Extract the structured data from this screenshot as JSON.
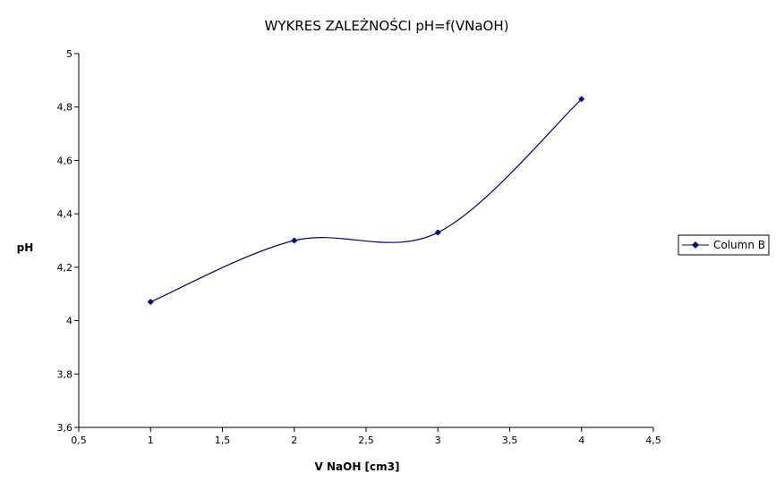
{
  "chart_data": {
    "type": "line",
    "title": "WYKRES ZALEŻNOŚCI pH=f(VNaOH)",
    "xlabel": "V NaOH [cm3]",
    "ylabel": "pH",
    "xlim": [
      0.5,
      4.5
    ],
    "ylim": [
      3.6,
      5.0
    ],
    "x_ticks": [
      "0,5",
      "1",
      "1,5",
      "2",
      "2,5",
      "3",
      "3,5",
      "4",
      "4,5"
    ],
    "y_ticks": [
      "5",
      "4,8",
      "4,6",
      "4,4",
      "4,2",
      "4",
      "3,8",
      "3,6"
    ],
    "grid": false,
    "smoothed": true,
    "legend_position": "right",
    "series": [
      {
        "name": "Column B",
        "color": "#000080",
        "marker": "diamond",
        "x": [
          1,
          2,
          3,
          4
        ],
        "y": [
          4.07,
          4.3,
          4.33,
          4.83
        ]
      }
    ]
  }
}
